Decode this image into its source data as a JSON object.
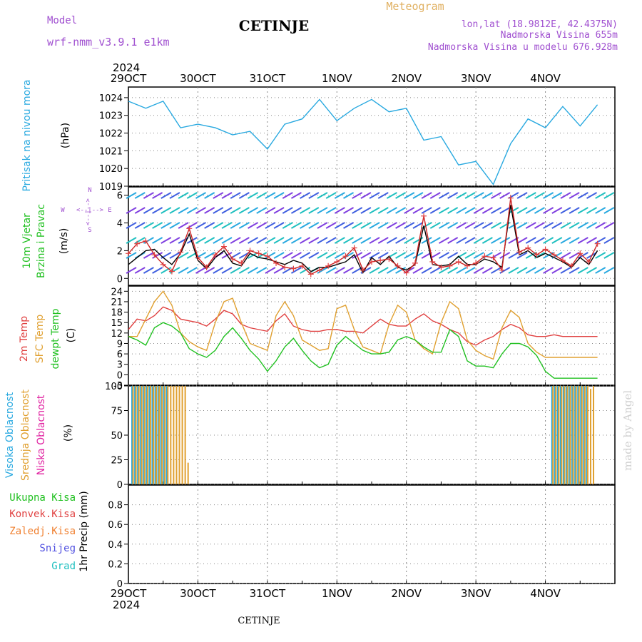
{
  "header": {
    "model_label": "Model",
    "model_name": "wrf-nmm_v3.9.1 e1km",
    "station": "CETINJE",
    "meteogram_label": "Meteogram",
    "lonlat": "lon,lat (18.9812E, 42.4375N)",
    "elevation": "Nadmorska Visina 655m",
    "model_elevation": "Nadmorska Visina u modelu 676.928m",
    "footer_station": "CETINJE",
    "watermark": "made by Angel"
  },
  "colors": {
    "pressure": "#29a9e0",
    "wind_speed": "#000000",
    "wind_gust": "#cc2222",
    "t2m": "#e04040",
    "sfc": "#e0a030",
    "dewpt": "#20c020",
    "high_cloud": "#29a9e0",
    "mid_cloud": "#e0a030",
    "low_cloud": "#e020a0",
    "grid": "#888888"
  },
  "axes": {
    "year": "2024",
    "day_labels": [
      "29OCT",
      "30OCT",
      "31OCT",
      "1NOV",
      "2NOV",
      "3NOV",
      "4NOV"
    ]
  },
  "panels": {
    "pressure": {
      "label": "Pritisak na nivou mora",
      "unit": "(hPa)"
    },
    "wind": {
      "label1": "10m Vjetar",
      "label2": "Brzina i Pravac",
      "unit": "(m/s)",
      "legend_n": "N",
      "legend_s": "S",
      "legend_w": "W",
      "legend_e": "E",
      "legend_arrows": "<--|-->"
    },
    "temp": {
      "label1": "2m Temp",
      "label2": "SFC Temp",
      "label3": "dewpt Temp",
      "unit": "(C)"
    },
    "cloud": {
      "label1": "Visoka Oblacnost",
      "label2": "Srednja Oblacnost",
      "label3": "Niska Oblacnost",
      "unit": "(%)"
    },
    "precip": {
      "label1": "Ukupna Kisa",
      "label2": "Konvek.Kisa",
      "label3": "Zaledj.Kisa",
      "label4": "Snijeg",
      "label5": "Grad",
      "unit": "1hr Precip (mm)"
    }
  },
  "chart_data": [
    {
      "type": "line",
      "panel": "pressure",
      "ylabel": "(hPa)",
      "ylim": [
        1019,
        1024.6
      ],
      "yticks": [
        1019,
        1020,
        1021,
        1022,
        1023,
        1024
      ],
      "x_hours": [
        0,
        6,
        12,
        18,
        24,
        30,
        36,
        42,
        48,
        54,
        60,
        66,
        72,
        78,
        84,
        90,
        96,
        102,
        108,
        114,
        120,
        126,
        132,
        138,
        144,
        150,
        156,
        162
      ],
      "series": [
        {
          "name": "Pritisak na nivou mora",
          "values": [
            1023.8,
            1023.4,
            1023.8,
            1022.3,
            1022.5,
            1022.3,
            1021.9,
            1022.1,
            1021.1,
            1022.5,
            1022.8,
            1023.9,
            1022.7,
            1023.4,
            1023.9,
            1023.2,
            1023.4,
            1021.6,
            1021.8,
            1020.2,
            1020.4,
            1019.1,
            1021.4,
            1022.8,
            1022.3,
            1023.5,
            1022.4,
            1023.6
          ]
        }
      ]
    },
    {
      "type": "line",
      "panel": "wind",
      "ylabel": "(m/s)",
      "ylim": [
        -0.5,
        6.6
      ],
      "yticks": [
        0,
        2,
        4,
        6
      ],
      "x_hours": [
        0,
        3,
        6,
        9,
        12,
        15,
        18,
        21,
        24,
        27,
        30,
        33,
        36,
        39,
        42,
        45,
        48,
        51,
        54,
        57,
        60,
        63,
        66,
        69,
        72,
        75,
        78,
        81,
        84,
        87,
        90,
        93,
        96,
        99,
        102,
        105,
        108,
        111,
        114,
        117,
        120,
        123,
        126,
        129,
        132,
        135,
        138,
        141,
        144,
        147,
        150,
        153,
        156,
        159,
        162
      ],
      "series": [
        {
          "name": "Brzina",
          "values": [
            1.0,
            1.5,
            2.0,
            2.1,
            1.5,
            1.0,
            1.8,
            3.2,
            1.3,
            0.7,
            1.5,
            2.0,
            1.1,
            0.9,
            1.8,
            1.5,
            1.4,
            1.2,
            1.0,
            1.3,
            1.1,
            0.5,
            0.8,
            0.8,
            1.0,
            1.2,
            1.7,
            0.4,
            1.5,
            1.0,
            1.6,
            0.8,
            0.6,
            1.0,
            3.8,
            1.0,
            0.9,
            1.0,
            1.6,
            1.0,
            1.0,
            1.4,
            1.2,
            0.8,
            5.3,
            1.7,
            2.0,
            1.5,
            1.8,
            1.5,
            1.2,
            0.8,
            1.5,
            1.0,
            2.0
          ]
        },
        {
          "name": "Udari",
          "values": [
            1.8,
            2.5,
            2.7,
            1.7,
            1.0,
            0.5,
            1.9,
            3.6,
            1.5,
            0.8,
            1.7,
            2.3,
            1.4,
            1.1,
            2.0,
            1.8,
            1.6,
            1.1,
            0.8,
            0.7,
            0.9,
            0.3,
            0.6,
            0.9,
            1.2,
            1.6,
            2.2,
            0.6,
            1.2,
            1.3,
            1.4,
            0.9,
            0.4,
            1.1,
            4.5,
            1.2,
            0.8,
            0.9,
            1.2,
            0.9,
            1.1,
            1.6,
            1.5,
            0.6,
            5.8,
            1.9,
            2.2,
            1.7,
            2.1,
            1.7,
            1.3,
            0.9,
            1.8,
            1.2,
            2.5
          ]
        }
      ]
    },
    {
      "type": "line",
      "panel": "temp",
      "ylabel": "(C)",
      "ylim": [
        -3,
        25.5
      ],
      "yticks": [
        -3,
        0,
        3,
        6,
        9,
        12,
        15,
        18,
        21,
        24
      ],
      "x_hours": [
        0,
        3,
        6,
        9,
        12,
        15,
        18,
        21,
        24,
        27,
        30,
        33,
        36,
        39,
        42,
        45,
        48,
        51,
        54,
        57,
        60,
        63,
        66,
        69,
        72,
        75,
        78,
        81,
        84,
        87,
        90,
        93,
        96,
        99,
        102,
        105,
        108,
        111,
        114,
        117,
        120,
        123,
        126,
        129,
        132,
        135,
        138,
        141,
        144,
        147,
        150,
        153,
        156,
        159,
        162
      ],
      "series": [
        {
          "name": "2m Temp",
          "values": [
            13.0,
            16.0,
            15.5,
            17.0,
            19.5,
            18.5,
            16.0,
            15.5,
            15.0,
            14.0,
            16.0,
            18.5,
            17.5,
            14.5,
            13.5,
            13.0,
            12.5,
            15.5,
            17.5,
            14.0,
            13.0,
            12.5,
            12.5,
            13.0,
            13.0,
            12.5,
            12.5,
            12.0,
            14.0,
            16.0,
            14.5,
            14.0,
            14.0,
            16.0,
            17.5,
            15.5,
            14.5,
            13.0,
            12.0,
            9.5,
            8.5,
            10.0,
            11.0,
            13.0,
            14.5,
            13.5,
            11.5,
            11.0,
            11.0,
            11.5,
            11.0,
            11.0,
            11.0,
            11.0,
            11.0
          ]
        },
        {
          "name": "SFC Temp",
          "values": [
            11.0,
            11.0,
            16.0,
            21.0,
            24.0,
            20.0,
            12.0,
            9.5,
            8.0,
            7.0,
            15.0,
            21.0,
            22.0,
            15.0,
            9.0,
            8.0,
            7.0,
            17.0,
            21.0,
            17.0,
            10.0,
            8.5,
            7.0,
            7.5,
            19.0,
            20.0,
            13.0,
            8.0,
            7.0,
            6.0,
            14.5,
            20.0,
            18.0,
            10.0,
            7.5,
            6.0,
            15.0,
            21.0,
            19.0,
            10.0,
            7.0,
            5.5,
            4.5,
            13.5,
            18.5,
            16.5,
            9.0,
            6.5,
            5.0,
            5.0,
            5.0,
            5.0,
            5.0,
            5.0,
            5.0
          ]
        },
        {
          "name": "dewpt Temp",
          "values": [
            11.0,
            10.0,
            8.5,
            13.5,
            15.0,
            14.0,
            12.0,
            7.5,
            6.0,
            5.0,
            7.0,
            11.0,
            13.5,
            10.5,
            7.0,
            4.5,
            1.0,
            4.0,
            8.0,
            10.5,
            7.0,
            4.0,
            2.0,
            3.0,
            8.5,
            11.0,
            9.0,
            7.0,
            6.0,
            6.0,
            6.5,
            10.0,
            11.0,
            10.0,
            8.0,
            6.5,
            6.5,
            13.0,
            11.0,
            4.0,
            2.5,
            2.5,
            2.0,
            6.0,
            9.0,
            9.0,
            8.0,
            5.5,
            1.0,
            -1.0,
            -1.0,
            -1.0,
            -1.0,
            -1.0,
            -1.0
          ]
        }
      ]
    },
    {
      "type": "bar",
      "panel": "cloud",
      "ylabel": "(%)",
      "ylim": [
        0,
        100
      ],
      "yticks": [
        0,
        25,
        50,
        75,
        100
      ],
      "series": [
        {
          "name": "Visoka Oblacnost",
          "x_hours": [
            1,
            2,
            3,
            4,
            5,
            6,
            7,
            8,
            9,
            10,
            11,
            12,
            13,
            146,
            147,
            148,
            149,
            150,
            151,
            152,
            153,
            154,
            155,
            156,
            157,
            158
          ],
          "values": [
            100,
            100,
            100,
            100,
            100,
            100,
            100,
            100,
            100,
            100,
            100,
            100,
            100,
            100,
            100,
            100,
            100,
            100,
            100,
            100,
            100,
            100,
            100,
            100,
            100,
            100
          ]
        },
        {
          "name": "Srednja Oblacnost",
          "x_hours": [
            1,
            2,
            3,
            4,
            5,
            6,
            7,
            8,
            9,
            10,
            11,
            12,
            13,
            14,
            15,
            16,
            17,
            18,
            19,
            20,
            146,
            147,
            148,
            149,
            150,
            151,
            152,
            153,
            154,
            155,
            156,
            157,
            158,
            159,
            160
          ],
          "values": [
            100,
            100,
            100,
            100,
            100,
            100,
            100,
            100,
            100,
            100,
            100,
            100,
            100,
            100,
            100,
            100,
            100,
            100,
            100,
            22,
            100,
            100,
            100,
            100,
            100,
            100,
            100,
            100,
            100,
            100,
            100,
            100,
            100,
            97,
            100
          ]
        },
        {
          "name": "Niska Oblacnost",
          "x_hours": [],
          "values": []
        }
      ]
    },
    {
      "type": "bar",
      "panel": "precip",
      "ylabel": "1hr Precip (mm)",
      "ylim": [
        0,
        1.0
      ],
      "yticks": [
        0,
        0.2,
        0.4,
        0.6,
        0.8
      ],
      "series": [
        {
          "name": "Ukupna Kisa",
          "x_hours": [],
          "values": []
        },
        {
          "name": "Konvek.Kisa",
          "x_hours": [],
          "values": []
        },
        {
          "name": "Zaledj.Kisa",
          "x_hours": [],
          "values": []
        },
        {
          "name": "Snijeg",
          "x_hours": [],
          "values": []
        },
        {
          "name": "Grad",
          "x_hours": [],
          "values": []
        }
      ]
    }
  ]
}
